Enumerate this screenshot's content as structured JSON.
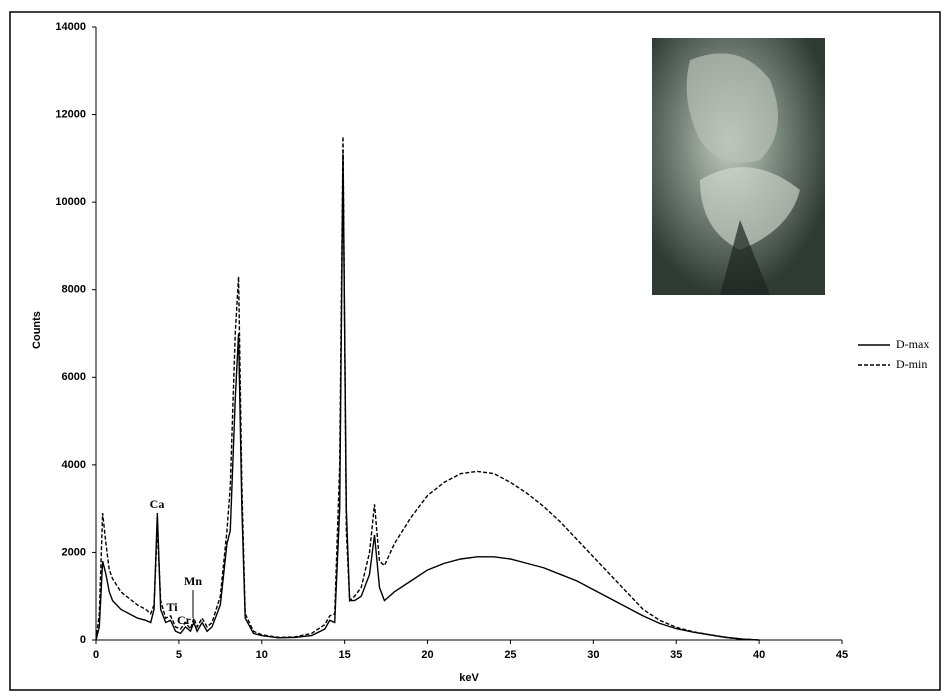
{
  "chart_data": {
    "type": "line",
    "x_label": "keV",
    "y_label": "Counts",
    "x": [
      0,
      0.2,
      0.4,
      0.6,
      0.8,
      1.0,
      1.5,
      2.0,
      2.5,
      3.0,
      3.3,
      3.5,
      3.7,
      3.9,
      4.2,
      4.5,
      4.8,
      5.1,
      5.4,
      5.7,
      5.9,
      6.1,
      6.4,
      6.7,
      7.0,
      7.5,
      7.9,
      8.1,
      8.4,
      8.6,
      8.8,
      9.0,
      9.5,
      10,
      11,
      12,
      13,
      13.8,
      14.1,
      14.4,
      14.7,
      14.9,
      15.1,
      15.3,
      15.6,
      16.0,
      16.5,
      16.8,
      17.1,
      17.4,
      18,
      19,
      20,
      21,
      22,
      23,
      24,
      25,
      26,
      27,
      28,
      29,
      30,
      31,
      32,
      33,
      34,
      35,
      36,
      37,
      38,
      39,
      40
    ],
    "series": [
      {
        "name": "D-max",
        "color": "#000000",
        "style": "solid",
        "values": [
          0,
          300,
          1800,
          1500,
          1100,
          900,
          700,
          600,
          500,
          450,
          400,
          700,
          2900,
          700,
          400,
          450,
          200,
          150,
          300,
          200,
          400,
          200,
          400,
          200,
          300,
          800,
          2200,
          2500,
          5500,
          7000,
          3000,
          500,
          150,
          100,
          50,
          60,
          100,
          250,
          450,
          400,
          3000,
          11100,
          3000,
          900,
          900,
          1000,
          1500,
          2400,
          1200,
          900,
          1100,
          1350,
          1600,
          1750,
          1850,
          1900,
          1900,
          1850,
          1750,
          1650,
          1500,
          1350,
          1150,
          950,
          750,
          550,
          380,
          260,
          180,
          120,
          60,
          20,
          0
        ]
      },
      {
        "name": "D-min",
        "color": "#000000",
        "style": "dashed",
        "values": [
          0,
          600,
          2900,
          2200,
          1600,
          1400,
          1100,
          950,
          800,
          700,
          600,
          800,
          2600,
          900,
          500,
          550,
          300,
          250,
          400,
          250,
          500,
          300,
          500,
          300,
          400,
          1000,
          2500,
          3500,
          7000,
          8300,
          3500,
          600,
          200,
          120,
          60,
          70,
          150,
          350,
          550,
          600,
          4000,
          11500,
          2500,
          900,
          1000,
          1200,
          2000,
          3100,
          1800,
          1700,
          2200,
          2800,
          3300,
          3600,
          3800,
          3850,
          3800,
          3600,
          3350,
          3050,
          2700,
          2300,
          1900,
          1500,
          1100,
          700,
          450,
          290,
          190,
          120,
          60,
          20,
          0
        ]
      }
    ],
    "annotations": [
      "Ca",
      "Ti",
      "Cr",
      "Mn"
    ],
    "xlim": [
      0,
      45
    ],
    "xticks": [
      0,
      5,
      10,
      15,
      20,
      25,
      30,
      35,
      40,
      45
    ],
    "ylim": [
      0,
      14000
    ],
    "yticks": [
      0,
      2000,
      4000,
      6000,
      8000,
      10000,
      12000,
      14000
    ],
    "grid": false,
    "legend": "right"
  }
}
